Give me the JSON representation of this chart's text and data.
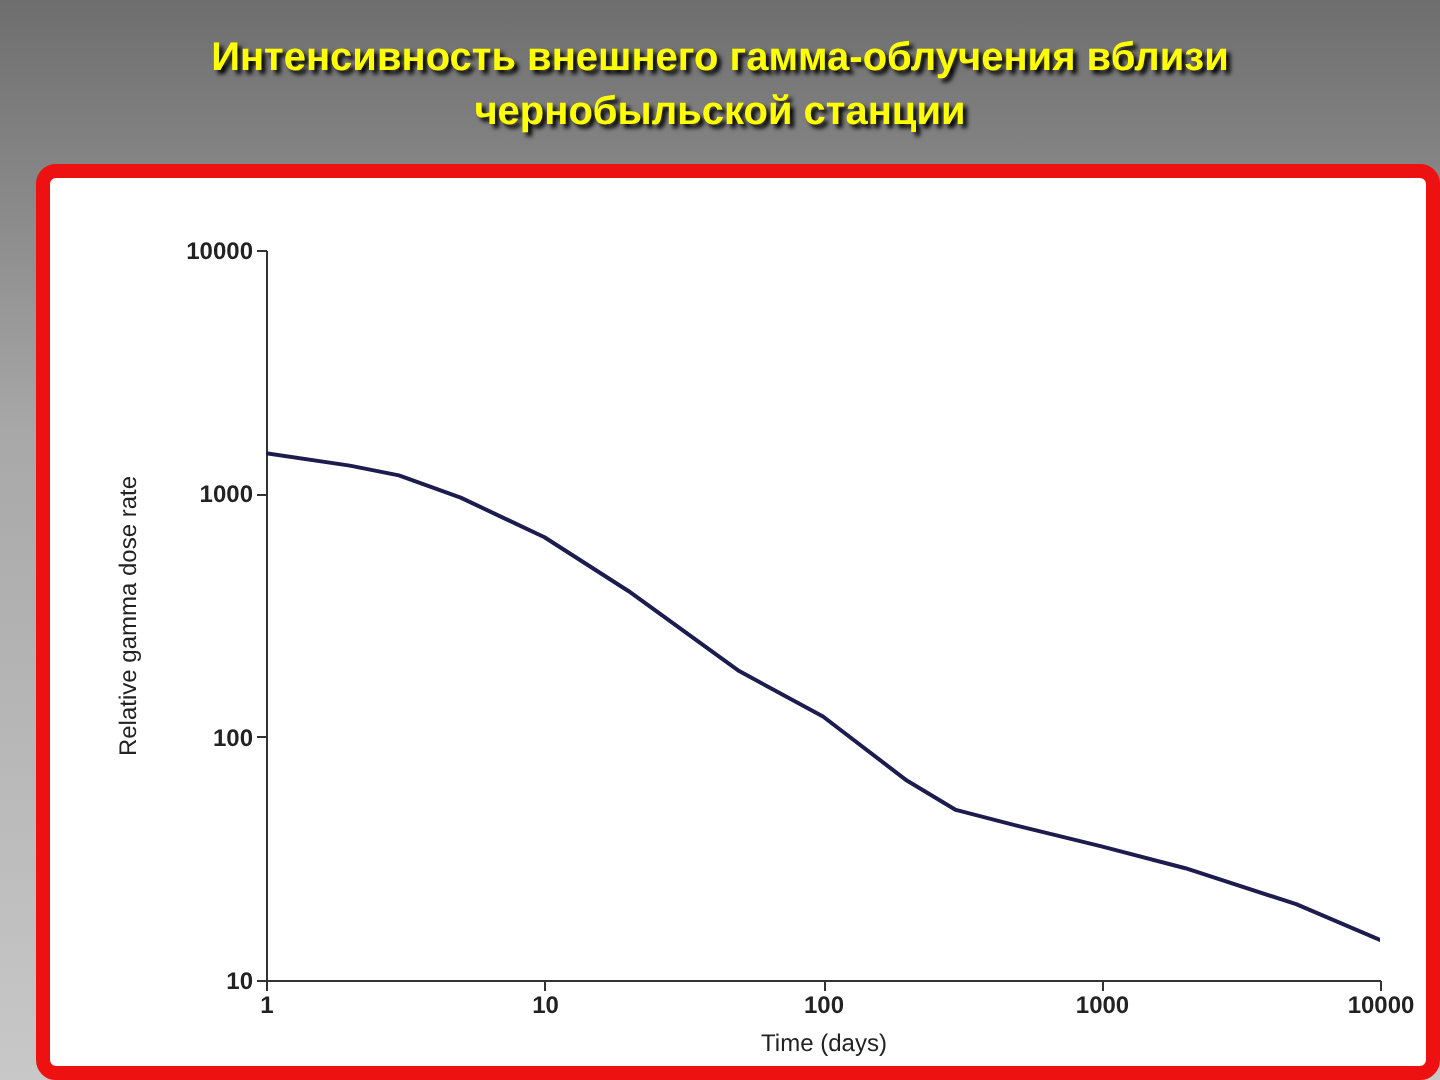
{
  "chart_data": {
    "type": "line",
    "title": "Интенсивность внешнего гамма-облучения вблизи чернобыльской станции",
    "xlabel": "Time (days)",
    "ylabel": "Relative gamma dose rate",
    "log": "xy",
    "grid": false,
    "marker": "none",
    "line_style": "solid",
    "xlim": [
      1,
      10000
    ],
    "xticks": [
      1,
      10,
      100,
      1000,
      10000
    ],
    "ylim": [
      10,
      10000
    ],
    "yticks": [
      10,
      100,
      1000,
      10000
    ],
    "x": [
      1,
      2,
      3,
      5,
      10,
      20,
      50,
      100,
      200,
      300,
      500,
      1000,
      2000,
      5000,
      10000
    ],
    "series": [
      {
        "color": "#1c1c4e",
        "values": [
          1460,
          1300,
          1185,
          960,
          660,
          397,
          186,
          121,
          66,
          50,
          43,
          35.4,
          28.8,
          20.5,
          14.6
        ]
      }
    ]
  }
}
